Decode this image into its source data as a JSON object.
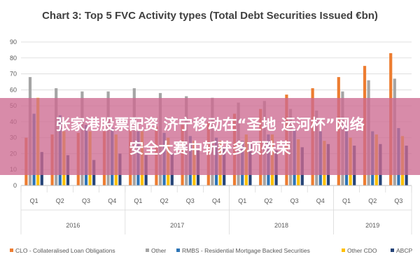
{
  "chart_data": {
    "type": "bar",
    "title": "Chart 3: Top 5 FVC Activity types (Total Debt Securities Issued €bn)",
    "categories": [
      "Q1",
      "Q2",
      "Q3",
      "Q4",
      "Q1",
      "Q2",
      "Q3",
      "Q4",
      "Q1",
      "Q2",
      "Q3",
      "Q4",
      "Q1",
      "Q2",
      "Q3"
    ],
    "years": [
      "2016",
      "2017",
      "2018",
      "2019"
    ],
    "ylim": [
      0,
      90
    ],
    "yticks": [
      0,
      10,
      20,
      30,
      40,
      50,
      60,
      70,
      80,
      90
    ],
    "grid": true,
    "legend_position": "bottom",
    "series": [
      {
        "name": "CLO - Collateralised Loan Obligations",
        "color": "#ed7d31",
        "values": [
          30,
          32,
          33,
          34,
          35,
          37,
          38,
          40,
          45,
          48,
          57,
          61,
          68,
          75,
          83
        ]
      },
      {
        "name": "Other",
        "color": "#a5a5a5",
        "values": [
          68,
          61,
          59,
          59,
          61,
          58,
          56,
          55,
          52,
          53,
          48,
          47,
          59,
          66,
          67
        ]
      },
      {
        "name": "RMBS - Residential Mortgage Backed Securities",
        "color": "#2e75b6",
        "values": [
          45,
          44,
          38,
          36,
          34,
          33,
          31,
          30,
          28,
          32,
          35,
          34,
          36,
          34,
          36
        ]
      },
      {
        "name": "Other CDO",
        "color": "#ffc000",
        "values": [
          55,
          34,
          34,
          32,
          34,
          30,
          28,
          28,
          32,
          32,
          29,
          28,
          30,
          32,
          31
        ]
      },
      {
        "name": "ABCP",
        "color": "#264478",
        "values": [
          21,
          19,
          16,
          20,
          19,
          20,
          22,
          24,
          26,
          22,
          24,
          26,
          25,
          26,
          25
        ]
      }
    ]
  },
  "banner": {
    "line1": "张家港股票配资 济宁移动在“圣地 运河杯”网络",
    "line2": "安全大赛中斩获多项殊荣"
  }
}
